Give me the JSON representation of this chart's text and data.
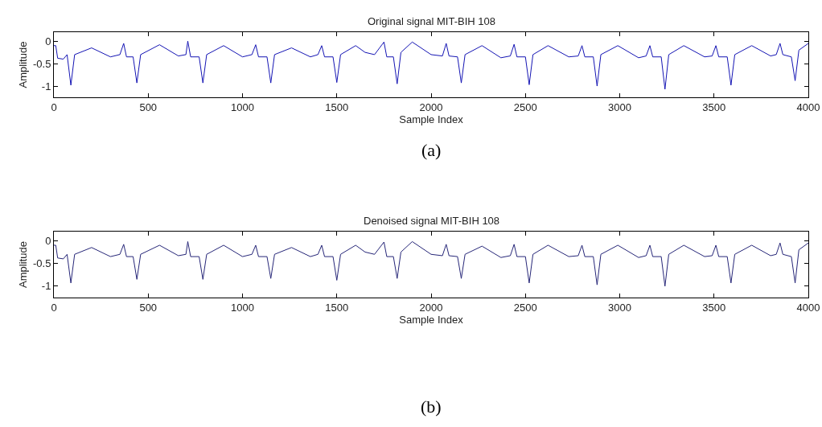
{
  "chart_data": [
    {
      "type": "line",
      "title": "Original signal MIT-BIH 108",
      "xlabel": "Sample Index",
      "ylabel": "Amplitude",
      "annotations": [
        "(a)"
      ],
      "xlim": [
        0,
        4000
      ],
      "xticks": [
        0,
        500,
        1000,
        1500,
        2000,
        2500,
        3000,
        3500,
        4000
      ],
      "ylim": [
        -1.25,
        0.2
      ],
      "yticks": [
        -1,
        -0.5,
        0
      ],
      "x": [
        0,
        10,
        20,
        50,
        70,
        90,
        110,
        200,
        300,
        350,
        370,
        385,
        420,
        440,
        460,
        560,
        660,
        700,
        710,
        725,
        770,
        790,
        810,
        900,
        1000,
        1050,
        1070,
        1085,
        1130,
        1150,
        1170,
        1260,
        1360,
        1400,
        1420,
        1435,
        1480,
        1500,
        1520,
        1600,
        1650,
        1700,
        1750,
        1765,
        1800,
        1820,
        1840,
        1900,
        2000,
        2060,
        2080,
        2095,
        2140,
        2160,
        2180,
        2270,
        2370,
        2420,
        2440,
        2455,
        2500,
        2520,
        2540,
        2620,
        2730,
        2780,
        2800,
        2815,
        2860,
        2880,
        2900,
        2990,
        3100,
        3140,
        3160,
        3175,
        3220,
        3240,
        3260,
        3340,
        3450,
        3490,
        3510,
        3525,
        3570,
        3590,
        3610,
        3700,
        3800,
        3830,
        3850,
        3865,
        3910,
        3930,
        3950,
        4000
      ],
      "series": [
        {
          "color": "#1414b4",
          "values": [
            -0.1,
            -0.1,
            -0.38,
            -0.4,
            -0.3,
            -0.98,
            -0.3,
            -0.15,
            -0.35,
            -0.3,
            -0.05,
            -0.35,
            -0.35,
            -0.93,
            -0.3,
            -0.08,
            -0.33,
            -0.3,
            0.0,
            -0.35,
            -0.35,
            -0.93,
            -0.3,
            -0.1,
            -0.35,
            -0.3,
            -0.08,
            -0.35,
            -0.35,
            -0.93,
            -0.3,
            -0.15,
            -0.35,
            -0.3,
            -0.1,
            -0.35,
            -0.35,
            -0.92,
            -0.3,
            -0.1,
            -0.25,
            -0.3,
            -0.02,
            -0.35,
            -0.35,
            -0.95,
            -0.25,
            -0.02,
            -0.3,
            -0.33,
            -0.05,
            -0.33,
            -0.35,
            -0.93,
            -0.3,
            -0.1,
            -0.37,
            -0.33,
            -0.07,
            -0.35,
            -0.35,
            -0.97,
            -0.3,
            -0.1,
            -0.35,
            -0.33,
            -0.1,
            -0.35,
            -0.35,
            -1.0,
            -0.3,
            -0.1,
            -0.37,
            -0.33,
            -0.1,
            -0.35,
            -0.35,
            -1.07,
            -0.3,
            -0.1,
            -0.35,
            -0.33,
            -0.1,
            -0.35,
            -0.35,
            -0.98,
            -0.3,
            -0.1,
            -0.33,
            -0.3,
            -0.05,
            -0.3,
            -0.35,
            -0.88,
            -0.2,
            -0.05
          ]
        }
      ]
    },
    {
      "type": "line",
      "title": "Denoised signal MIT-BIH 108",
      "xlabel": "Sample Index",
      "ylabel": "Amplitude",
      "annotations": [
        "(b)"
      ],
      "xlim": [
        0,
        4000
      ],
      "xticks": [
        0,
        500,
        1000,
        1500,
        2000,
        2500,
        3000,
        3500,
        4000
      ],
      "ylim": [
        -1.25,
        0.2
      ],
      "yticks": [
        -1,
        -0.5,
        0
      ],
      "x": [
        0,
        10,
        20,
        50,
        70,
        90,
        110,
        200,
        300,
        350,
        370,
        385,
        420,
        440,
        460,
        560,
        660,
        700,
        710,
        725,
        770,
        790,
        810,
        900,
        1000,
        1050,
        1070,
        1085,
        1130,
        1150,
        1170,
        1260,
        1360,
        1400,
        1420,
        1435,
        1480,
        1500,
        1520,
        1600,
        1650,
        1700,
        1750,
        1765,
        1800,
        1820,
        1840,
        1900,
        2000,
        2060,
        2080,
        2095,
        2140,
        2160,
        2180,
        2270,
        2370,
        2420,
        2440,
        2455,
        2500,
        2520,
        2540,
        2620,
        2730,
        2780,
        2800,
        2815,
        2860,
        2880,
        2900,
        2990,
        3100,
        3140,
        3160,
        3175,
        3220,
        3240,
        3260,
        3340,
        3450,
        3490,
        3510,
        3525,
        3570,
        3590,
        3610,
        3700,
        3800,
        3830,
        3850,
        3865,
        3910,
        3930,
        3950,
        4000
      ],
      "series": [
        {
          "color": "#262678",
          "values": [
            -0.1,
            -0.1,
            -0.38,
            -0.4,
            -0.3,
            -0.93,
            -0.3,
            -0.15,
            -0.35,
            -0.3,
            -0.08,
            -0.35,
            -0.35,
            -0.85,
            -0.3,
            -0.1,
            -0.33,
            -0.3,
            -0.02,
            -0.35,
            -0.35,
            -0.85,
            -0.3,
            -0.1,
            -0.35,
            -0.3,
            -0.1,
            -0.35,
            -0.35,
            -0.83,
            -0.3,
            -0.15,
            -0.35,
            -0.3,
            -0.1,
            -0.35,
            -0.35,
            -0.87,
            -0.3,
            -0.1,
            -0.25,
            -0.3,
            -0.03,
            -0.35,
            -0.35,
            -0.83,
            -0.25,
            -0.02,
            -0.3,
            -0.33,
            -0.08,
            -0.33,
            -0.35,
            -0.83,
            -0.3,
            -0.12,
            -0.37,
            -0.33,
            -0.08,
            -0.35,
            -0.35,
            -0.93,
            -0.3,
            -0.1,
            -0.35,
            -0.33,
            -0.1,
            -0.35,
            -0.35,
            -0.97,
            -0.3,
            -0.1,
            -0.37,
            -0.33,
            -0.1,
            -0.35,
            -0.35,
            -1.0,
            -0.3,
            -0.1,
            -0.35,
            -0.33,
            -0.1,
            -0.35,
            -0.35,
            -0.93,
            -0.3,
            -0.1,
            -0.33,
            -0.3,
            -0.05,
            -0.3,
            -0.35,
            -0.93,
            -0.2,
            -0.05
          ]
        }
      ]
    }
  ]
}
